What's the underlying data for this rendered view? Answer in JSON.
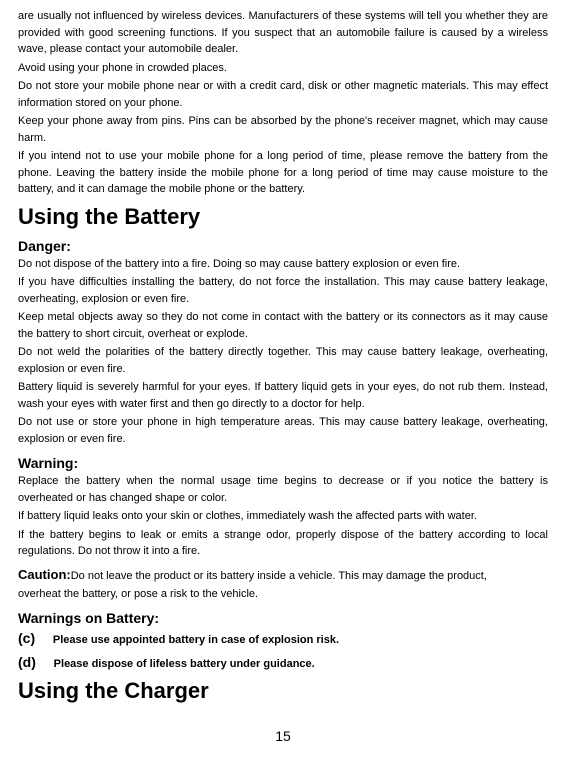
{
  "paragraphs": {
    "p1": "are usually not influenced by wireless devices. Manufacturers of these systems will tell you whether they are provided with good screening functions. If you suspect that an automobile failure is caused by a wireless wave, please contact your automobile dealer.",
    "p2": "Avoid using your phone in crowded places.",
    "p3": "Do not store your mobile phone near or with a credit card, disk or other magnetic materials. This may effect information stored on your phone.",
    "p4": "Keep your phone away from pins. Pins can be absorbed by the phone's receiver magnet, which may cause harm.",
    "p5": "If you intend not to use your mobile phone for a long period of time, please remove the battery from the phone. Leaving the battery inside the mobile phone for a long period of time may cause moisture to the battery, and it can damage the mobile phone or the battery."
  },
  "headings": {
    "using_battery": "Using the Battery",
    "danger": "Danger:",
    "warning": "Warning:",
    "warnings_battery": "Warnings on Battery:",
    "using_charger": "Using the Charger"
  },
  "danger": {
    "d1": "Do not dispose of the battery into a fire. Doing so may cause battery explosion or even fire.",
    "d2": "If you have difficulties installing the battery, do not force the installation. This may cause battery leakage, overheating, explosion or even fire.",
    "d3": "Keep metal objects away so they do not come in contact with the battery or its connectors as it may cause the battery to short circuit, overheat or explode.",
    "d4": "Do not weld the polarities of the battery directly together. This may cause battery leakage, overheating, explosion or even fire.",
    "d5": "Battery liquid is severely harmful for your eyes. If battery liquid gets in your eyes, do not rub them. Instead, wash your eyes with water first and then go directly to a doctor for help.",
    "d6": "Do not use or store your phone in high temperature areas. This may cause battery leakage, overheating, explosion or even fire."
  },
  "warning": {
    "w1": "Replace the battery when the normal usage time begins to decrease or if you notice the battery is overheated or has changed shape or color.",
    "w2": "If battery liquid leaks onto your skin or clothes, immediately wash the affected parts with water.",
    "w3": "If the battery begins to leak or emits a strange odor, properly dispose of the battery according to local regulations. Do not throw it into a fire."
  },
  "caution": {
    "label": "Caution:",
    "text1": "Do not leave the product or its battery inside a vehicle. This may damage the product,",
    "text2": "overheat the battery, or pose a risk to the vehicle."
  },
  "battery_warnings": {
    "c_label": "(c)",
    "c_text": "Please use appointed battery in case of explosion risk.",
    "d_label": "(d)",
    "d_text": "Please dispose of lifeless battery under guidance."
  },
  "page_number": "15"
}
